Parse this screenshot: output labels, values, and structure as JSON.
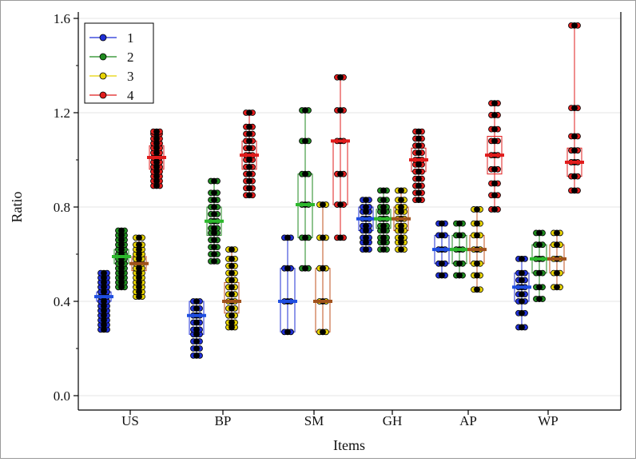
{
  "chart_data": {
    "type": "dot-box",
    "xlabel": "Items",
    "ylabel": "Ratio",
    "ylim": [
      0.0,
      1.6
    ],
    "yticks": [
      "0.0",
      "0.4",
      "0.8",
      "1.2",
      "1.6"
    ],
    "categories": [
      "US",
      "BP",
      "SM",
      "GH",
      "AP",
      "WP"
    ],
    "legend": {
      "position": "top-left",
      "entries": [
        "1",
        "2",
        "3",
        "4"
      ]
    },
    "series": [
      {
        "name": "1",
        "color": "#1f2fd6",
        "median_color": "#1f4fe0",
        "groups": [
          {
            "median": 0.42,
            "q1": 0.4,
            "q3": 0.44,
            "values": [
              0.28,
              0.3,
              0.32,
              0.34,
              0.36,
              0.38,
              0.4,
              0.42,
              0.44,
              0.46,
              0.48,
              0.5,
              0.52
            ]
          },
          {
            "median": 0.34,
            "q1": 0.26,
            "q3": 0.4,
            "values": [
              0.17,
              0.2,
              0.23,
              0.26,
              0.28,
              0.31,
              0.34,
              0.37,
              0.4
            ]
          },
          {
            "median": 0.4,
            "q1": 0.27,
            "q3": 0.54,
            "values": [
              0.27,
              0.4,
              0.54,
              0.67
            ]
          },
          {
            "median": 0.75,
            "q1": 0.7,
            "q3": 0.8,
            "values": [
              0.62,
              0.65,
              0.67,
              0.7,
              0.72,
              0.75,
              0.78,
              0.8,
              0.83
            ]
          },
          {
            "median": 0.62,
            "q1": 0.56,
            "q3": 0.68,
            "values": [
              0.51,
              0.56,
              0.62,
              0.68,
              0.73
            ]
          },
          {
            "median": 0.46,
            "q1": 0.4,
            "q3": 0.52,
            "values": [
              0.29,
              0.35,
              0.4,
              0.43,
              0.46,
              0.49,
              0.52,
              0.58
            ]
          }
        ]
      },
      {
        "name": "2",
        "color": "#1f8a1f",
        "median_color": "#2db82d",
        "groups": [
          {
            "median": 0.59,
            "q1": 0.56,
            "q3": 0.62,
            "values": [
              0.46,
              0.48,
              0.5,
              0.52,
              0.54,
              0.56,
              0.58,
              0.6,
              0.62,
              0.64,
              0.66,
              0.68,
              0.7
            ]
          },
          {
            "median": 0.74,
            "q1": 0.68,
            "q3": 0.8,
            "values": [
              0.57,
              0.6,
              0.63,
              0.66,
              0.69,
              0.71,
              0.74,
              0.77,
              0.8,
              0.83,
              0.86,
              0.91
            ]
          },
          {
            "median": 0.81,
            "q1": 0.67,
            "q3": 0.94,
            "values": [
              0.54,
              0.67,
              0.81,
              0.94,
              1.08,
              1.21
            ]
          },
          {
            "median": 0.75,
            "q1": 0.71,
            "q3": 0.79,
            "values": [
              0.62,
              0.65,
              0.67,
              0.7,
              0.72,
              0.75,
              0.78,
              0.8,
              0.83,
              0.87
            ]
          },
          {
            "median": 0.62,
            "q1": 0.56,
            "q3": 0.68,
            "values": [
              0.51,
              0.56,
              0.62,
              0.68,
              0.73
            ]
          },
          {
            "median": 0.58,
            "q1": 0.52,
            "q3": 0.64,
            "values": [
              0.41,
              0.46,
              0.52,
              0.58,
              0.64,
              0.69
            ]
          }
        ]
      },
      {
        "name": "3",
        "color": "#e6d200",
        "median_color": "#a0521c",
        "groups": [
          {
            "median": 0.56,
            "q1": 0.53,
            "q3": 0.59,
            "values": [
              0.42,
              0.44,
              0.46,
              0.48,
              0.5,
              0.52,
              0.54,
              0.56,
              0.58,
              0.6,
              0.62,
              0.64,
              0.67
            ]
          },
          {
            "median": 0.4,
            "q1": 0.35,
            "q3": 0.48,
            "values": [
              0.29,
              0.31,
              0.34,
              0.37,
              0.4,
              0.43,
              0.46,
              0.49,
              0.52,
              0.55,
              0.58,
              0.62
            ]
          },
          {
            "median": 0.4,
            "q1": 0.27,
            "q3": 0.54,
            "values": [
              0.27,
              0.4,
              0.54,
              0.67,
              0.81
            ]
          },
          {
            "median": 0.75,
            "q1": 0.7,
            "q3": 0.8,
            "values": [
              0.62,
              0.65,
              0.67,
              0.7,
              0.72,
              0.75,
              0.78,
              0.8,
              0.83,
              0.87
            ]
          },
          {
            "median": 0.62,
            "q1": 0.56,
            "q3": 0.68,
            "values": [
              0.45,
              0.51,
              0.56,
              0.62,
              0.68,
              0.73,
              0.79
            ]
          },
          {
            "median": 0.58,
            "q1": 0.52,
            "q3": 0.64,
            "values": [
              0.46,
              0.52,
              0.58,
              0.64,
              0.69
            ]
          }
        ]
      },
      {
        "name": "4",
        "color": "#e01c1c",
        "median_color": "#e01c1c",
        "groups": [
          {
            "median": 1.01,
            "q1": 0.96,
            "q3": 1.06,
            "values": [
              0.89,
              0.91,
              0.93,
              0.95,
              0.97,
              0.99,
              1.01,
              1.03,
              1.05,
              1.07,
              1.09,
              1.11,
              1.12
            ]
          },
          {
            "median": 1.02,
            "q1": 0.96,
            "q3": 1.08,
            "values": [
              0.85,
              0.88,
              0.91,
              0.94,
              0.97,
              1.0,
              1.02,
              1.05,
              1.08,
              1.11,
              1.14,
              1.2
            ]
          },
          {
            "median": 1.08,
            "q1": 0.81,
            "q3": 1.08,
            "values": [
              0.67,
              0.81,
              0.94,
              1.08,
              1.21,
              1.35
            ]
          },
          {
            "median": 1.0,
            "q1": 0.95,
            "q3": 1.05,
            "values": [
              0.83,
              0.86,
              0.89,
              0.92,
              0.95,
              0.98,
              1.0,
              1.03,
              1.06,
              1.09,
              1.12
            ]
          },
          {
            "median": 1.02,
            "q1": 0.94,
            "q3": 1.1,
            "values": [
              0.79,
              0.85,
              0.9,
              0.96,
              1.02,
              1.08,
              1.13,
              1.19,
              1.24
            ]
          },
          {
            "median": 0.99,
            "q1": 0.93,
            "q3": 1.05,
            "values": [
              0.87,
              0.93,
              0.99,
              1.04,
              1.1,
              1.22,
              1.57
            ]
          }
        ]
      }
    ]
  }
}
